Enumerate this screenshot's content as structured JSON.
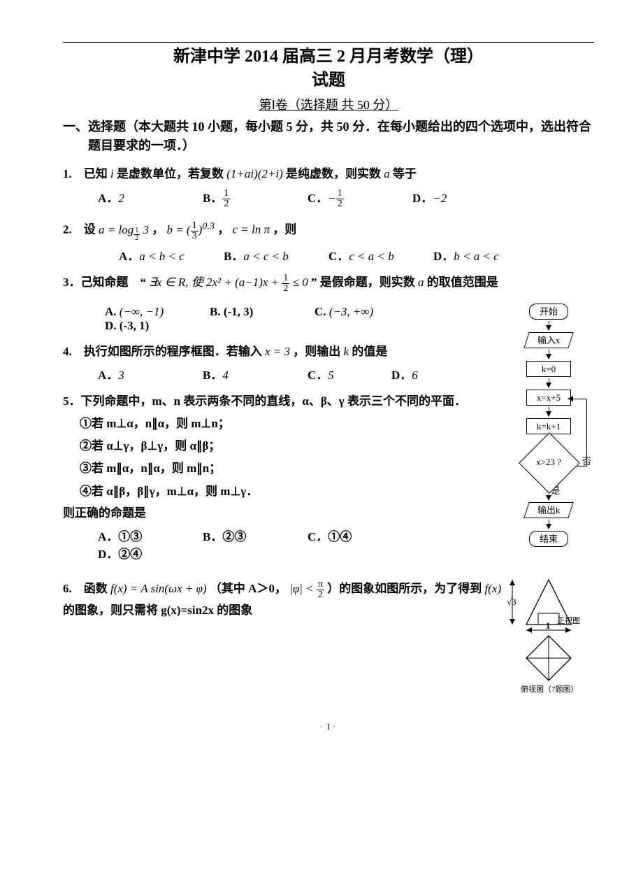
{
  "exam": {
    "title": "新津中学 2014 届高三 2 月月考数学（理）\n试题",
    "subtitle": "第Ⅰ卷（选择题 共 50 分）",
    "section1": "一、选择题（本大题共 10 小题，每小题 5 分，共 50 分．在每小题给出的四个选项中，选出符合题目要求的一项．）"
  },
  "q1": {
    "stem_a": "1.　已知",
    "stem_i": "i",
    "stem_b": "是虚数单位，若复数",
    "expr": "(1+ai)(2+i)",
    "stem_c": "是纯虚数，则实数",
    "var": "a",
    "stem_d": "等于",
    "opts": {
      "A": "2",
      "B_n": "1",
      "B_d": "2",
      "C_sign": "−",
      "C_n": "1",
      "C_d": "2",
      "D": "−2"
    }
  },
  "q2": {
    "stem_a": "2.　设",
    "eq1_l": "a = log",
    "eq1_base_n": "1",
    "eq1_base_d": "2",
    "eq1_arg": "3",
    "eq2_l": "b = (",
    "eq2_n": "1",
    "eq2_d": "3",
    "eq2_r": ")",
    "eq2_exp": "0.3",
    "eq3": "c = ln π",
    "stem_b": "，则",
    "opts": {
      "A": "a < b < c",
      "B": "a < c < b",
      "C": "c < a < b",
      "D": "b < a < c"
    }
  },
  "q3": {
    "stem_a": "3．己知命题　“",
    "expr_l": "∃x ∈ R, 使 2x² + (a−1)x +",
    "frac_n": "1",
    "frac_d": "2",
    "expr_r": " ≤ 0",
    "stem_b": "” 是假命题，则实数",
    "var": "a",
    "stem_c": "的取值范围是",
    "opts": {
      "A": "(−∞, −1)",
      "B": "(-1, 3)",
      "C": "(−3, +∞)",
      "D": "(-3, 1)"
    }
  },
  "q4": {
    "stem_a": "4.　执行如图所示的程序框图．若输入",
    "eq": "x = 3",
    "stem_b": "，则输出",
    "var": "k",
    "stem_c": "的值是",
    "opts": {
      "A": "3",
      "B": "4",
      "C": "5",
      "D": "6"
    }
  },
  "flowchart": {
    "start": "开始",
    "input": "输入x",
    "init": "k=0",
    "step1": "x=x+5",
    "step2": "k=k+1",
    "cond": "x>23 ?",
    "no": "否",
    "yes": "是",
    "output": "输出k",
    "end": "结束"
  },
  "q5": {
    "stem": "5．下列命题中，m、n 表示两条不同的直线，α、β、γ 表示三个不同的平面．",
    "l1": "①若 m⊥α，n∥α，则 m⊥n；",
    "l2": "②若 α⊥γ，β⊥γ，则 α∥β；",
    "l3": "③若 m∥α，n∥α，则 m∥n；",
    "l4": "④若 α∥β，β∥γ，m⊥α，则 m⊥γ．",
    "concl": "则正确的命题是",
    "opts": {
      "A": "①③",
      "B": "②③",
      "C": "①④",
      "D": "②④"
    }
  },
  "q6": {
    "stem_a": "6.　函数",
    "fx": "f(x) = A sin(ωx + φ)",
    "stem_b": "（其中 A＞0，",
    "phi": "|φ| <",
    "phi_n": "π",
    "phi_d": "2",
    "stem_c": "）的图象如图所示，为了得到",
    "fx2": "f(x)",
    "stem_d": "的图象，则只需将 g(x)=sin2x 的图象"
  },
  "geom": {
    "sqrt3": "√3̅",
    "front": "正视图",
    "one": "1",
    "top": "俯视图（7题图）"
  },
  "footer": {
    "page": "1"
  },
  "colors": {
    "line": "#000000",
    "bg": "#ffffff"
  }
}
